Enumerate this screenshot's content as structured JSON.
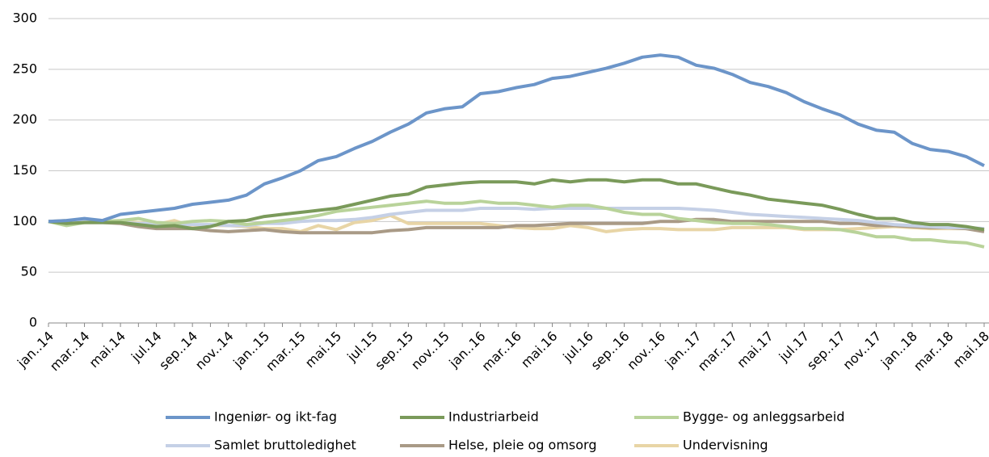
{
  "chart_data": {
    "type": "line",
    "categories": [
      "jan..14",
      null,
      "mar..14",
      null,
      "mai.14",
      null,
      "jul.14",
      null,
      "sep..14",
      null,
      "nov..14",
      null,
      "jan..15",
      null,
      "mar..15",
      null,
      "mai.15",
      null,
      "jul.15",
      null,
      "sep..15",
      null,
      "nov..15",
      null,
      "jan..16",
      null,
      "mar..16",
      null,
      "mai.16",
      null,
      "jul.16",
      null,
      "sep..16",
      null,
      "nov..16",
      null,
      "jan..17",
      null,
      "mar..17",
      null,
      "mai.17",
      null,
      "jul.17",
      null,
      "sep..17",
      null,
      "nov..17",
      null,
      "jan..18",
      null,
      "mar..18",
      null,
      "mai.18"
    ],
    "series": [
      {
        "name": "Ingeniør- og ikt-fag",
        "color": "#6c95c9",
        "values": [
          100,
          101,
          103,
          101,
          107,
          109,
          111,
          113,
          117,
          119,
          121,
          126,
          137,
          143,
          150,
          160,
          164,
          172,
          179,
          188,
          196,
          207,
          211,
          213,
          226,
          228,
          232,
          235,
          241,
          243,
          247,
          251,
          256,
          262,
          264,
          262,
          254,
          251,
          245,
          237,
          233,
          227,
          218,
          211,
          205,
          196,
          190,
          188,
          177,
          171,
          169,
          164,
          155
        ]
      },
      {
        "name": "Industriarbeid",
        "color": "#7a9a5a",
        "values": [
          100,
          98,
          99,
          99,
          99,
          97,
          95,
          96,
          93,
          95,
          100,
          101,
          105,
          107,
          109,
          111,
          113,
          117,
          121,
          125,
          127,
          134,
          136,
          138,
          139,
          139,
          139,
          137,
          141,
          139,
          141,
          141,
          139,
          141,
          141,
          137,
          137,
          133,
          129,
          126,
          122,
          120,
          118,
          116,
          112,
          107,
          103,
          103,
          99,
          97,
          97,
          95,
          92
        ]
      },
      {
        "name": "Bygge- og anleggsarbeid",
        "color": "#b9d39a",
        "values": [
          100,
          96,
          99,
          100,
          101,
          103,
          99,
          98,
          100,
          101,
          100,
          97,
          99,
          101,
          103,
          106,
          110,
          112,
          114,
          116,
          118,
          120,
          118,
          118,
          120,
          118,
          118,
          116,
          114,
          116,
          116,
          113,
          109,
          107,
          107,
          103,
          101,
          99,
          98,
          98,
          97,
          95,
          93,
          93,
          92,
          89,
          85,
          85,
          82,
          82,
          80,
          79,
          75
        ]
      },
      {
        "name": "Samlet bruttoledighet",
        "color": "#c5d0e6",
        "values": [
          100,
          100,
          100,
          100,
          99,
          98,
          98,
          97,
          97,
          97,
          96,
          96,
          98,
          98,
          100,
          101,
          101,
          102,
          104,
          107,
          109,
          111,
          111,
          111,
          113,
          113,
          113,
          112,
          113,
          113,
          113,
          113,
          113,
          113,
          113,
          113,
          112,
          111,
          109,
          107,
          106,
          105,
          104,
          103,
          102,
          101,
          99,
          97,
          96,
          95,
          94,
          94,
          93
        ]
      },
      {
        "name": "Helse, pleie og omsorg",
        "color": "#a99a86",
        "values": [
          100,
          99,
          99,
          99,
          98,
          95,
          93,
          93,
          93,
          91,
          90,
          91,
          92,
          90,
          89,
          89,
          89,
          89,
          89,
          91,
          92,
          94,
          94,
          94,
          94,
          94,
          96,
          96,
          97,
          98,
          98,
          98,
          98,
          98,
          100,
          100,
          102,
          102,
          100,
          100,
          100,
          100,
          100,
          100,
          98,
          98,
          96,
          96,
          95,
          94,
          94,
          93,
          90
        ]
      },
      {
        "name": "Undervisning",
        "color": "#e8d5a6",
        "values": [
          100,
          101,
          100,
          100,
          100,
          99,
          97,
          101,
          95,
          96,
          96,
          95,
          93,
          93,
          90,
          96,
          92,
          99,
          101,
          106,
          98,
          98,
          98,
          98,
          98,
          96,
          94,
          93,
          93,
          96,
          94,
          90,
          92,
          93,
          93,
          92,
          92,
          92,
          94,
          94,
          94,
          94,
          92,
          92,
          92,
          93,
          94,
          95,
          94,
          93,
          93,
          93,
          91
        ]
      }
    ],
    "ylim": [
      0,
      300
    ],
    "yticks": [
      0,
      50,
      100,
      150,
      200,
      250,
      300
    ],
    "grid": true
  }
}
